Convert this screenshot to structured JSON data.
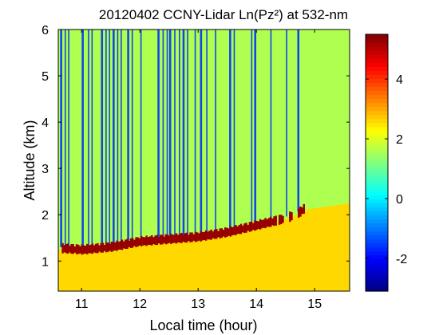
{
  "chart_data": {
    "type": "heatmap",
    "title": "20120402 CCNY-Lidar Ln(Pz²) at 532-nm",
    "xlabel": "Local time (hour)",
    "ylabel": "Altitude (km)",
    "xlim": [
      10.6,
      15.6
    ],
    "ylim": [
      0.35,
      6.0
    ],
    "x_ticks": [
      11,
      12,
      13,
      14,
      15
    ],
    "y_ticks": [
      1,
      2,
      3,
      4,
      5,
      6
    ],
    "colorbar": {
      "colormap": "jet",
      "range": [
        -3.1,
        5.5
      ],
      "ticks": [
        -2,
        0,
        2,
        4
      ]
    },
    "field": {
      "background_value": 1.6,
      "near_surface_value": 2.6,
      "data_end_time": 15.0,
      "blue_streak_value": -1.6,
      "cloud_value": 5.3,
      "boundary_layer_top": [
        [
          10.65,
          1.25
        ],
        [
          11.0,
          1.22
        ],
        [
          11.5,
          1.28
        ],
        [
          12.0,
          1.4
        ],
        [
          12.5,
          1.45
        ],
        [
          13.0,
          1.5
        ],
        [
          13.5,
          1.6
        ],
        [
          14.0,
          1.75
        ],
        [
          14.5,
          1.9
        ],
        [
          14.7,
          2.0
        ],
        [
          14.8,
          2.1
        ]
      ],
      "streak_times": [
        10.65,
        10.72,
        10.78,
        11.02,
        11.12,
        11.18,
        11.35,
        11.42,
        11.48,
        11.55,
        11.62,
        11.68,
        11.8,
        11.87,
        12.02,
        12.32,
        12.4,
        12.47,
        12.52,
        12.6,
        12.68,
        12.75,
        12.82,
        12.95,
        13.05,
        13.15,
        13.3,
        13.55,
        13.62,
        13.92,
        13.98,
        14.25,
        14.52,
        14.72
      ]
    }
  }
}
